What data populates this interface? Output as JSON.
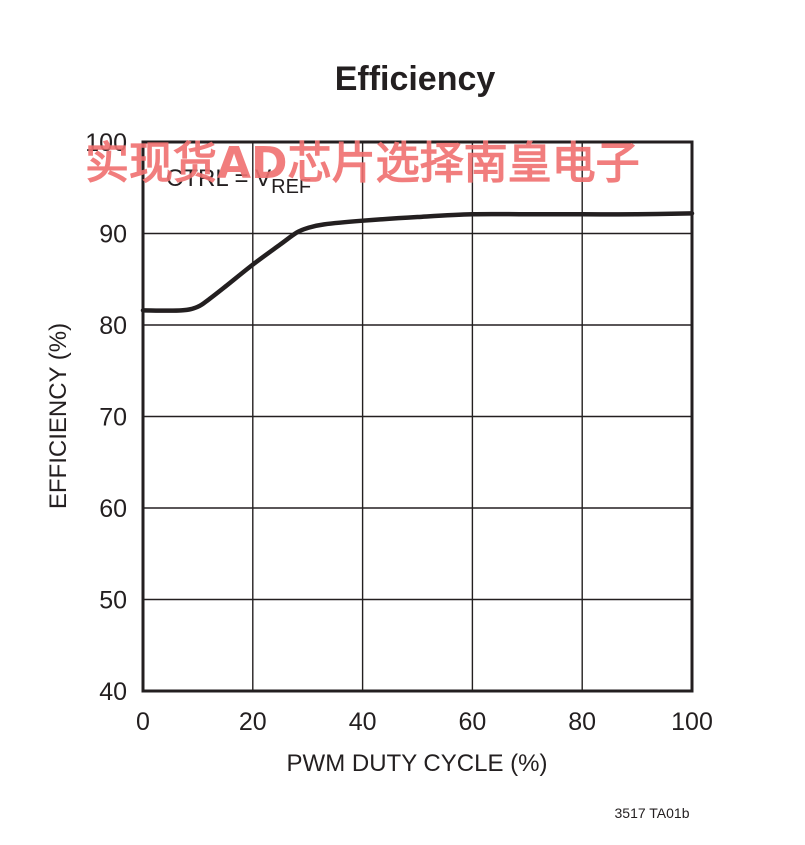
{
  "chart_data": {
    "type": "line",
    "title": "Efficiency",
    "xlabel": "PWM DUTY CYCLE (%)",
    "ylabel": "EFFICIENCY (%)",
    "xlim": [
      0,
      100
    ],
    "ylim": [
      40,
      100
    ],
    "xticks": [
      0,
      20,
      40,
      60,
      80,
      100
    ],
    "yticks": [
      40,
      50,
      60,
      70,
      80,
      90,
      100
    ],
    "grid": true,
    "annotation": {
      "main": "CTRL = V",
      "sub": "REF"
    },
    "figure_id": "3517 TA01b",
    "series": [
      {
        "color": "#231f20",
        "x": [
          0,
          7,
          10,
          12,
          15,
          20,
          25,
          28,
          30,
          33,
          40,
          50,
          60,
          70,
          80,
          90,
          100
        ],
        "y": [
          81.6,
          81.6,
          82.0,
          82.8,
          84.2,
          86.6,
          88.8,
          90.1,
          90.6,
          91.0,
          91.4,
          91.8,
          92.1,
          92.1,
          92.1,
          92.1,
          92.2
        ]
      }
    ]
  },
  "watermark": "实现货AD芯片选择南皇电子"
}
